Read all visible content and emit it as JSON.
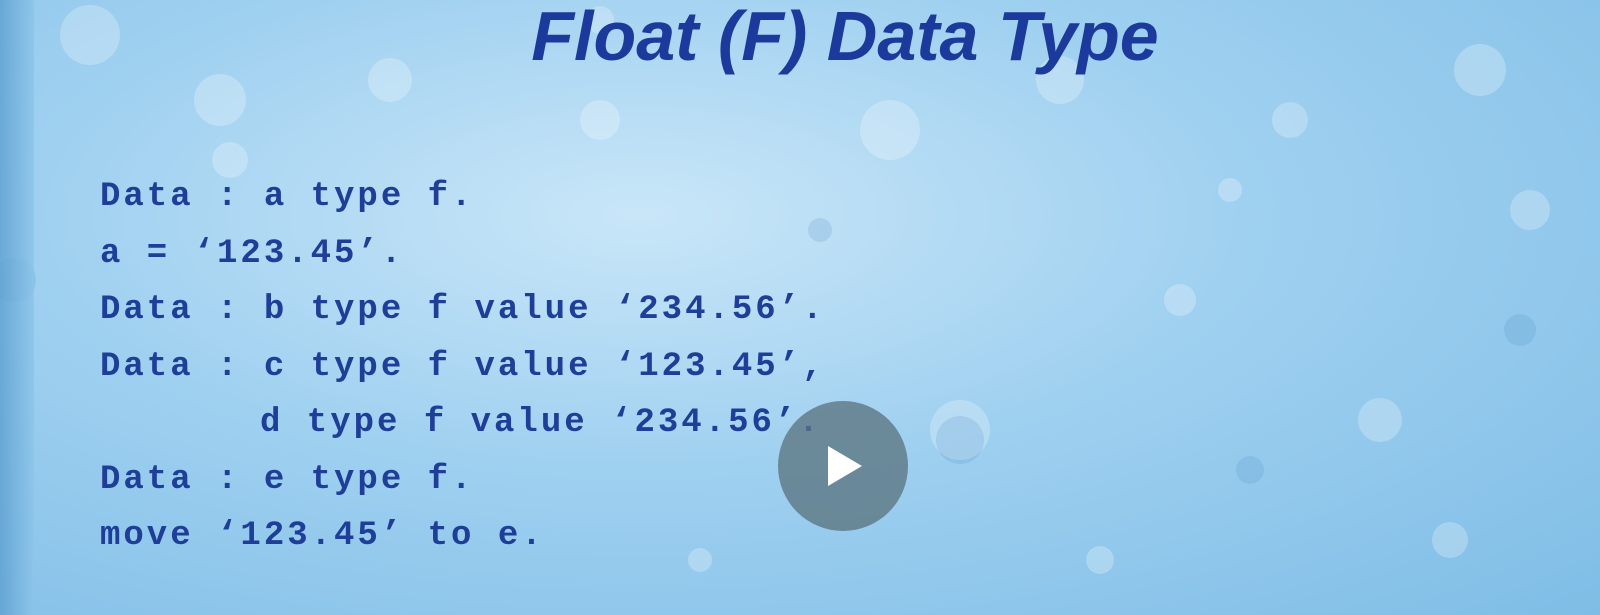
{
  "slide": {
    "title": "Float (F) Data Type",
    "code_lines": [
      "Data : a type f.",
      "a = ‘123.45’.",
      "Data : b type f value ‘234.56’.",
      "Data : c type f value ‘123.45’,",
      "d type f value ‘234.56’.",
      "Data : e type f.",
      "move ‘123.45’ to e."
    ]
  }
}
